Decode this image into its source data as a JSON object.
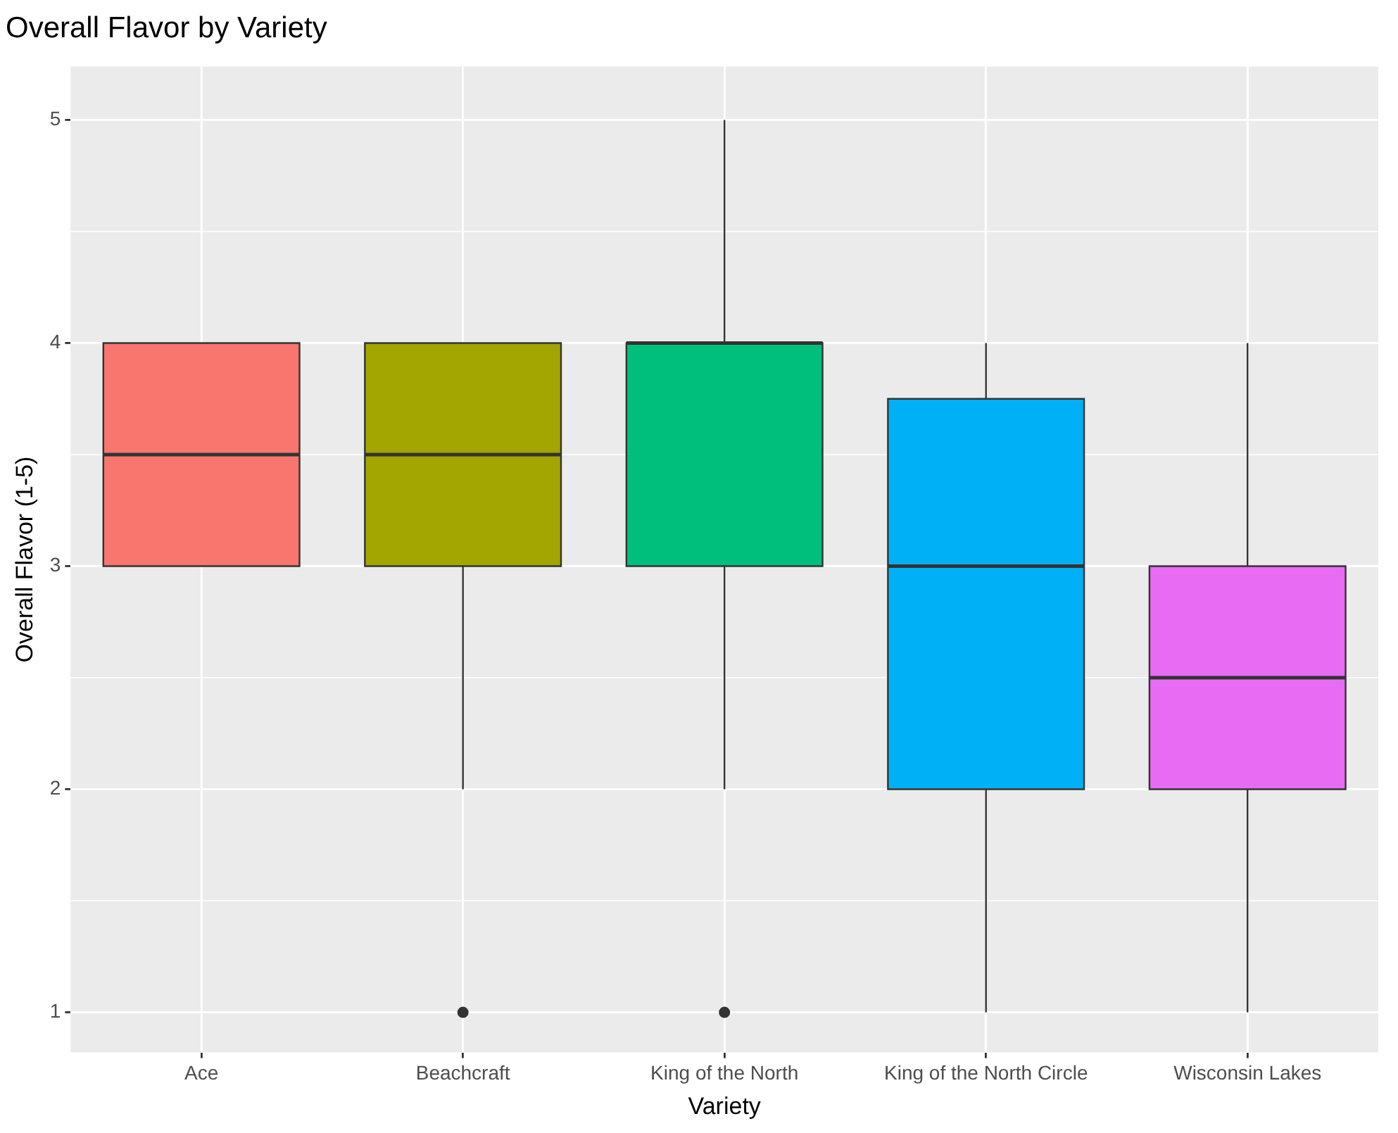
{
  "chart_data": {
    "type": "box",
    "title": "Overall Flavor by Variety",
    "xlabel": "Variety",
    "ylabel": "Overall Flavor (1-5)",
    "categories": [
      "Ace",
      "Beachcraft",
      "King of the North",
      "King of the North Circle",
      "Wisconsin Lakes"
    ],
    "colors": [
      "#f8766d",
      "#a3a500",
      "#00bf7d",
      "#00b0f6",
      "#e76bf3"
    ],
    "boxes": [
      {
        "low": 3,
        "q1": 3,
        "median": 3.5,
        "q3": 4,
        "high": 4
      },
      {
        "low": 2,
        "q1": 3,
        "median": 3.5,
        "q3": 4,
        "high": 4,
        "outliers": [
          1
        ]
      },
      {
        "low": 2,
        "q1": 3,
        "median": 4,
        "q3": 4,
        "high": 5,
        "outliers": [
          1
        ]
      },
      {
        "low": 1,
        "q1": 2,
        "median": 3,
        "q3": 3.75,
        "high": 4
      },
      {
        "low": 1,
        "q1": 2,
        "median": 2.5,
        "q3": 3,
        "high": 4
      }
    ],
    "ylim": [
      0.82,
      5.24
    ],
    "yticks": [
      1,
      2,
      3,
      4,
      5
    ],
    "grid": true,
    "legend": false
  }
}
